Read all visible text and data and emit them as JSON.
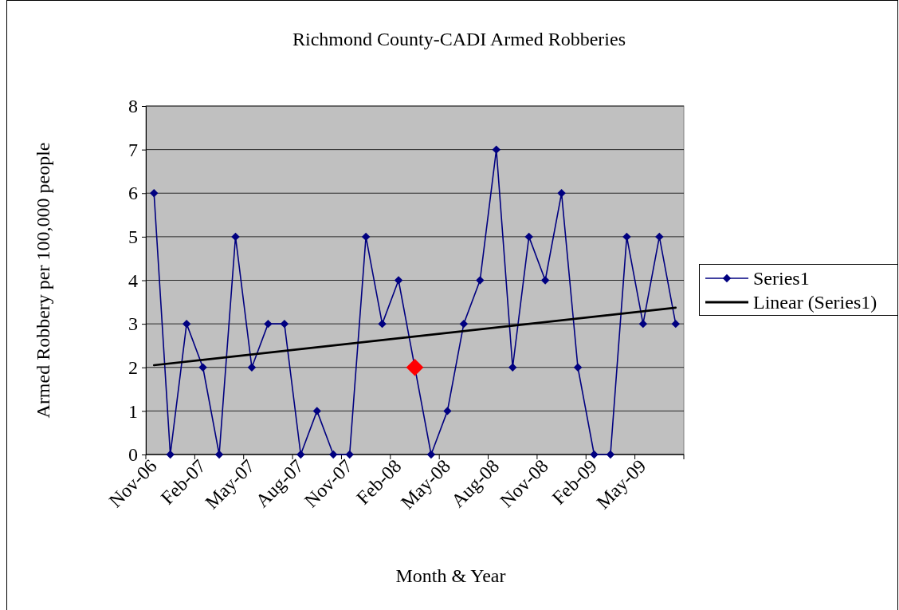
{
  "chart_data": {
    "type": "line",
    "title": "Richmond County-CADI Armed Robberies",
    "xlabel": "Month & Year",
    "ylabel": "Armed Robbery per 100,000 people",
    "categories": [
      "Nov-06",
      null,
      null,
      "Feb-07",
      null,
      null,
      "May-07",
      null,
      null,
      "Aug-07",
      null,
      null,
      "Nov-07",
      null,
      null,
      "Feb-08",
      null,
      null,
      "May-08",
      null,
      null,
      "Aug-08",
      null,
      null,
      "Nov-08",
      null,
      null,
      "Feb-09",
      null,
      null,
      "May-09",
      null,
      null
    ],
    "series": [
      {
        "name": "Series1",
        "color": "#000080",
        "marker": "diamond",
        "values": [
          6,
          0,
          3,
          2,
          0,
          5,
          2,
          3,
          3,
          0,
          1,
          0,
          0,
          5,
          3,
          4,
          2,
          0,
          1,
          3,
          4,
          7,
          2,
          5,
          4,
          6,
          2,
          0,
          0,
          5,
          3,
          5,
          3
        ],
        "colors": [
          "#000080",
          "#000080",
          "#000080",
          "#000080",
          "#000080",
          "#000080",
          "#000080",
          "#000080",
          "#000080",
          "#000080",
          "#000080",
          "#000080",
          "#000080",
          "#000080",
          "#000080",
          "#000080",
          "#ff0000",
          "#000080",
          "#000080",
          "#000080",
          "#000080",
          "#000080",
          "#000080",
          "#000080",
          "#000080",
          "#000080",
          "#000080",
          "#000080",
          "#000080",
          "#000080",
          "#000080",
          "#000080",
          "#000080"
        ]
      },
      {
        "name": "Linear (Series1)",
        "color": "#000000",
        "marker": "none",
        "values": [
          2.05,
          null,
          null,
          null,
          null,
          null,
          null,
          null,
          null,
          null,
          null,
          null,
          null,
          null,
          null,
          null,
          null,
          null,
          null,
          null,
          null,
          null,
          null,
          null,
          null,
          null,
          null,
          null,
          null,
          null,
          null,
          null,
          3.37
        ]
      }
    ],
    "ylim": [
      0,
      8
    ],
    "yticks": [
      0,
      1,
      2,
      3,
      4,
      5,
      6,
      7,
      8
    ],
    "grid": "y",
    "legend": "right"
  }
}
